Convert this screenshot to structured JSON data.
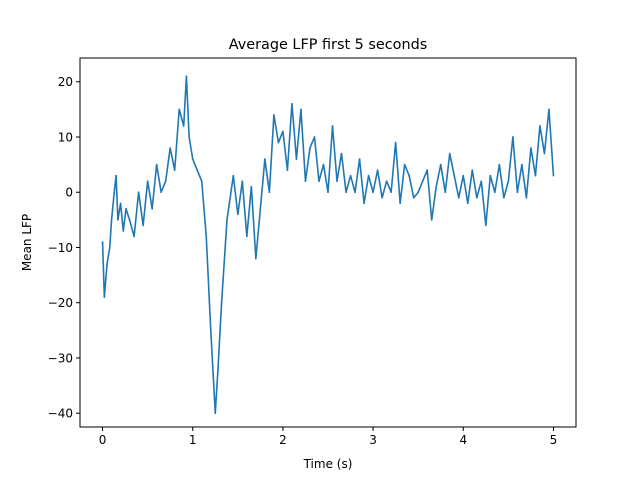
{
  "chart_data": {
    "type": "line",
    "title": "Average LFP first 5 seconds",
    "xlabel": "Time (s)",
    "ylabel": "Mean LFP",
    "xlim": [
      -0.25,
      5.25
    ],
    "ylim": [
      -42.5,
      24.3
    ],
    "x_ticks": [
      0,
      1,
      2,
      3,
      4,
      5
    ],
    "x_tick_labels": [
      "0",
      "1",
      "2",
      "3",
      "4",
      "5"
    ],
    "y_ticks": [
      -40,
      -30,
      -20,
      -10,
      0,
      10,
      20
    ],
    "y_tick_labels": [
      "−40",
      "−30",
      "−20",
      "−10",
      "0",
      "10",
      "20"
    ],
    "grid": false,
    "legend": "none",
    "series": [
      {
        "color": "#1f77b4",
        "x": [
          0.0,
          0.02,
          0.05,
          0.08,
          0.1,
          0.13,
          0.15,
          0.17,
          0.2,
          0.23,
          0.26,
          0.3,
          0.35,
          0.4,
          0.45,
          0.5,
          0.55,
          0.6,
          0.65,
          0.7,
          0.75,
          0.8,
          0.85,
          0.9,
          0.93,
          0.96,
          1.0,
          1.05,
          1.1,
          1.15,
          1.2,
          1.25,
          1.28,
          1.32,
          1.38,
          1.45,
          1.5,
          1.55,
          1.6,
          1.65,
          1.7,
          1.75,
          1.8,
          1.85,
          1.9,
          1.95,
          2.0,
          2.05,
          2.1,
          2.15,
          2.2,
          2.25,
          2.3,
          2.35,
          2.4,
          2.45,
          2.5,
          2.55,
          2.6,
          2.65,
          2.7,
          2.75,
          2.8,
          2.85,
          2.9,
          2.95,
          3.0,
          3.05,
          3.1,
          3.15,
          3.2,
          3.25,
          3.3,
          3.35,
          3.4,
          3.45,
          3.5,
          3.55,
          3.6,
          3.65,
          3.7,
          3.75,
          3.8,
          3.85,
          3.9,
          3.95,
          4.0,
          4.05,
          4.1,
          4.15,
          4.2,
          4.25,
          4.3,
          4.35,
          4.4,
          4.45,
          4.5,
          4.55,
          4.6,
          4.65,
          4.7,
          4.75,
          4.8,
          4.85,
          4.9,
          4.95,
          5.0
        ],
        "y": [
          -9,
          -19,
          -13,
          -10,
          -5,
          0,
          3,
          -5,
          -2,
          -7,
          -3,
          -5,
          -8,
          0,
          -6,
          2,
          -3,
          5,
          0,
          2,
          8,
          4,
          15,
          12,
          21,
          10,
          6,
          4,
          2,
          -8,
          -25,
          -40,
          -32,
          -20,
          -5,
          3,
          -4,
          2,
          -8,
          1,
          -12,
          -3,
          6,
          0,
          14,
          9,
          11,
          4,
          16,
          6,
          15,
          2,
          8,
          10,
          2,
          5,
          0,
          12,
          2,
          7,
          0,
          3,
          0,
          6,
          -2,
          3,
          0,
          4,
          -1,
          2,
          0,
          9,
          -2,
          5,
          3,
          -1,
          0,
          2,
          4,
          -5,
          1,
          5,
          0,
          7,
          3,
          -1,
          3,
          -2,
          4,
          -1,
          2,
          -6,
          3,
          0,
          5,
          -1,
          2,
          10,
          0,
          5,
          -1,
          8,
          3,
          12,
          7,
          15,
          3
        ]
      }
    ]
  }
}
